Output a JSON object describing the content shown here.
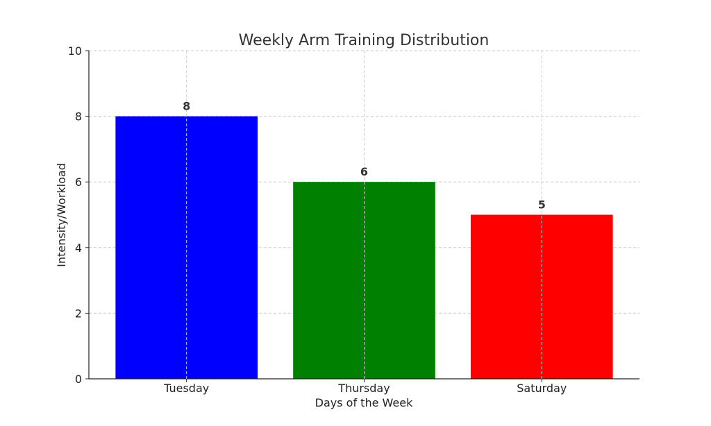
{
  "chart_data": {
    "type": "bar",
    "title": "Weekly Arm Training Distribution",
    "xlabel": "Days of the Week",
    "ylabel": "Intensity/Workload",
    "categories": [
      "Tuesday",
      "Thursday",
      "Saturday"
    ],
    "values": [
      8,
      6,
      5
    ],
    "colors": [
      "#0000ff",
      "#008000",
      "#ff0000"
    ],
    "ylim": [
      0,
      10
    ],
    "yticks": [
      0,
      2,
      4,
      6,
      8,
      10
    ],
    "grid": true,
    "data_labels": true
  }
}
